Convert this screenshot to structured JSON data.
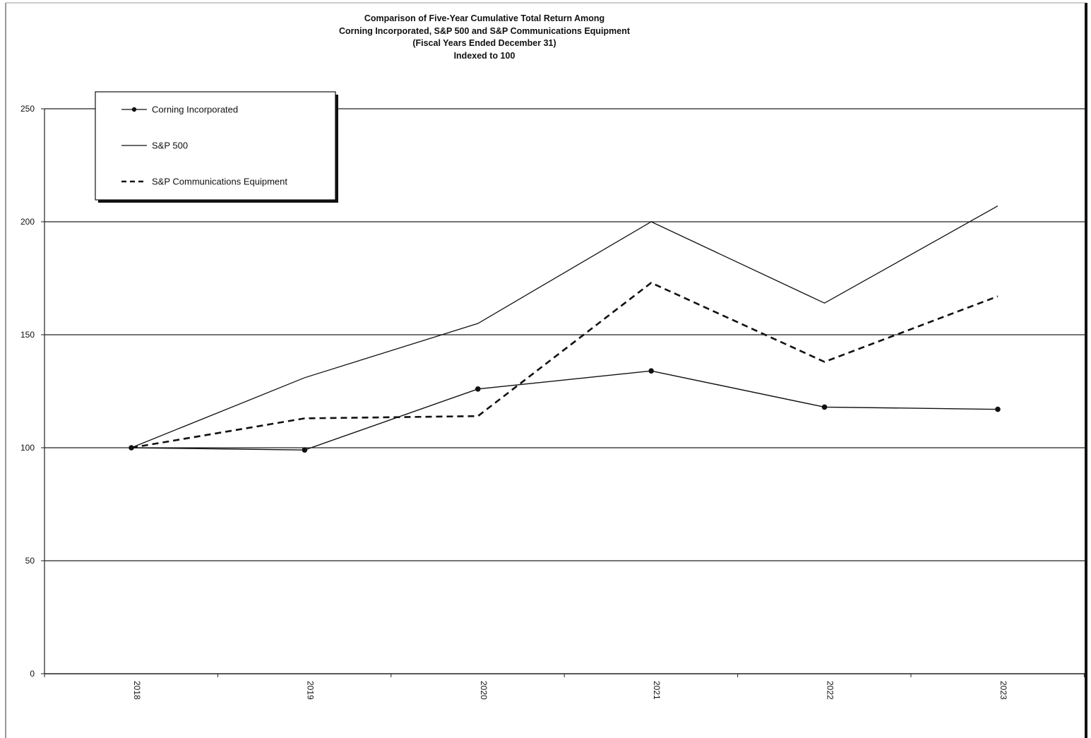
{
  "chart_data": {
    "type": "line",
    "title_lines": [
      "Comparison of Five-Year Cumulative Total Return Among",
      "Corning Incorporated, S&P 500 and S&P Communications Equipment",
      "(Fiscal Years Ended December 31)",
      "Indexed to 100"
    ],
    "x": [
      "2018",
      "2019",
      "2020",
      "2021",
      "2022",
      "2023"
    ],
    "yticks": [
      "0",
      "50",
      "100",
      "150",
      "200",
      "250"
    ],
    "ylim": [
      0,
      250
    ],
    "grid": true,
    "legend_position": "top-left",
    "series": [
      {
        "name": "Corning Incorporated",
        "values": [
          100,
          99,
          126,
          134,
          118,
          117
        ],
        "style": "solid-markers",
        "color": "#111111"
      },
      {
        "name": "S&P 500",
        "values": [
          100,
          131,
          155,
          200,
          164,
          207
        ],
        "style": "solid",
        "color": "#111111"
      },
      {
        "name": "S&P Communications Equipment",
        "values": [
          100,
          113,
          114,
          173,
          138,
          167
        ],
        "style": "dashed",
        "color": "#111111"
      }
    ]
  }
}
